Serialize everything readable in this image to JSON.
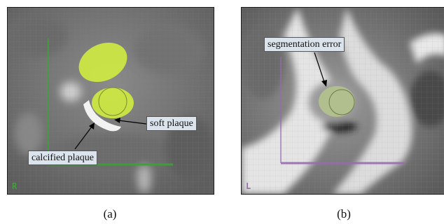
{
  "panel_a": {
    "labels": {
      "soft_plaque": "soft plaque",
      "calcified_plaque": "calcified plaque"
    },
    "corner_label": "R",
    "caption": "(a)",
    "colors": {
      "axis": "#3fa03a",
      "segmentation": "#d4f23c"
    }
  },
  "panel_b": {
    "labels": {
      "segmentation_error": "segmentation error"
    },
    "corner_label": "L",
    "caption": "(b)",
    "colors": {
      "axis": "#9a6ab0",
      "segmentation": "#b8c98a"
    }
  }
}
